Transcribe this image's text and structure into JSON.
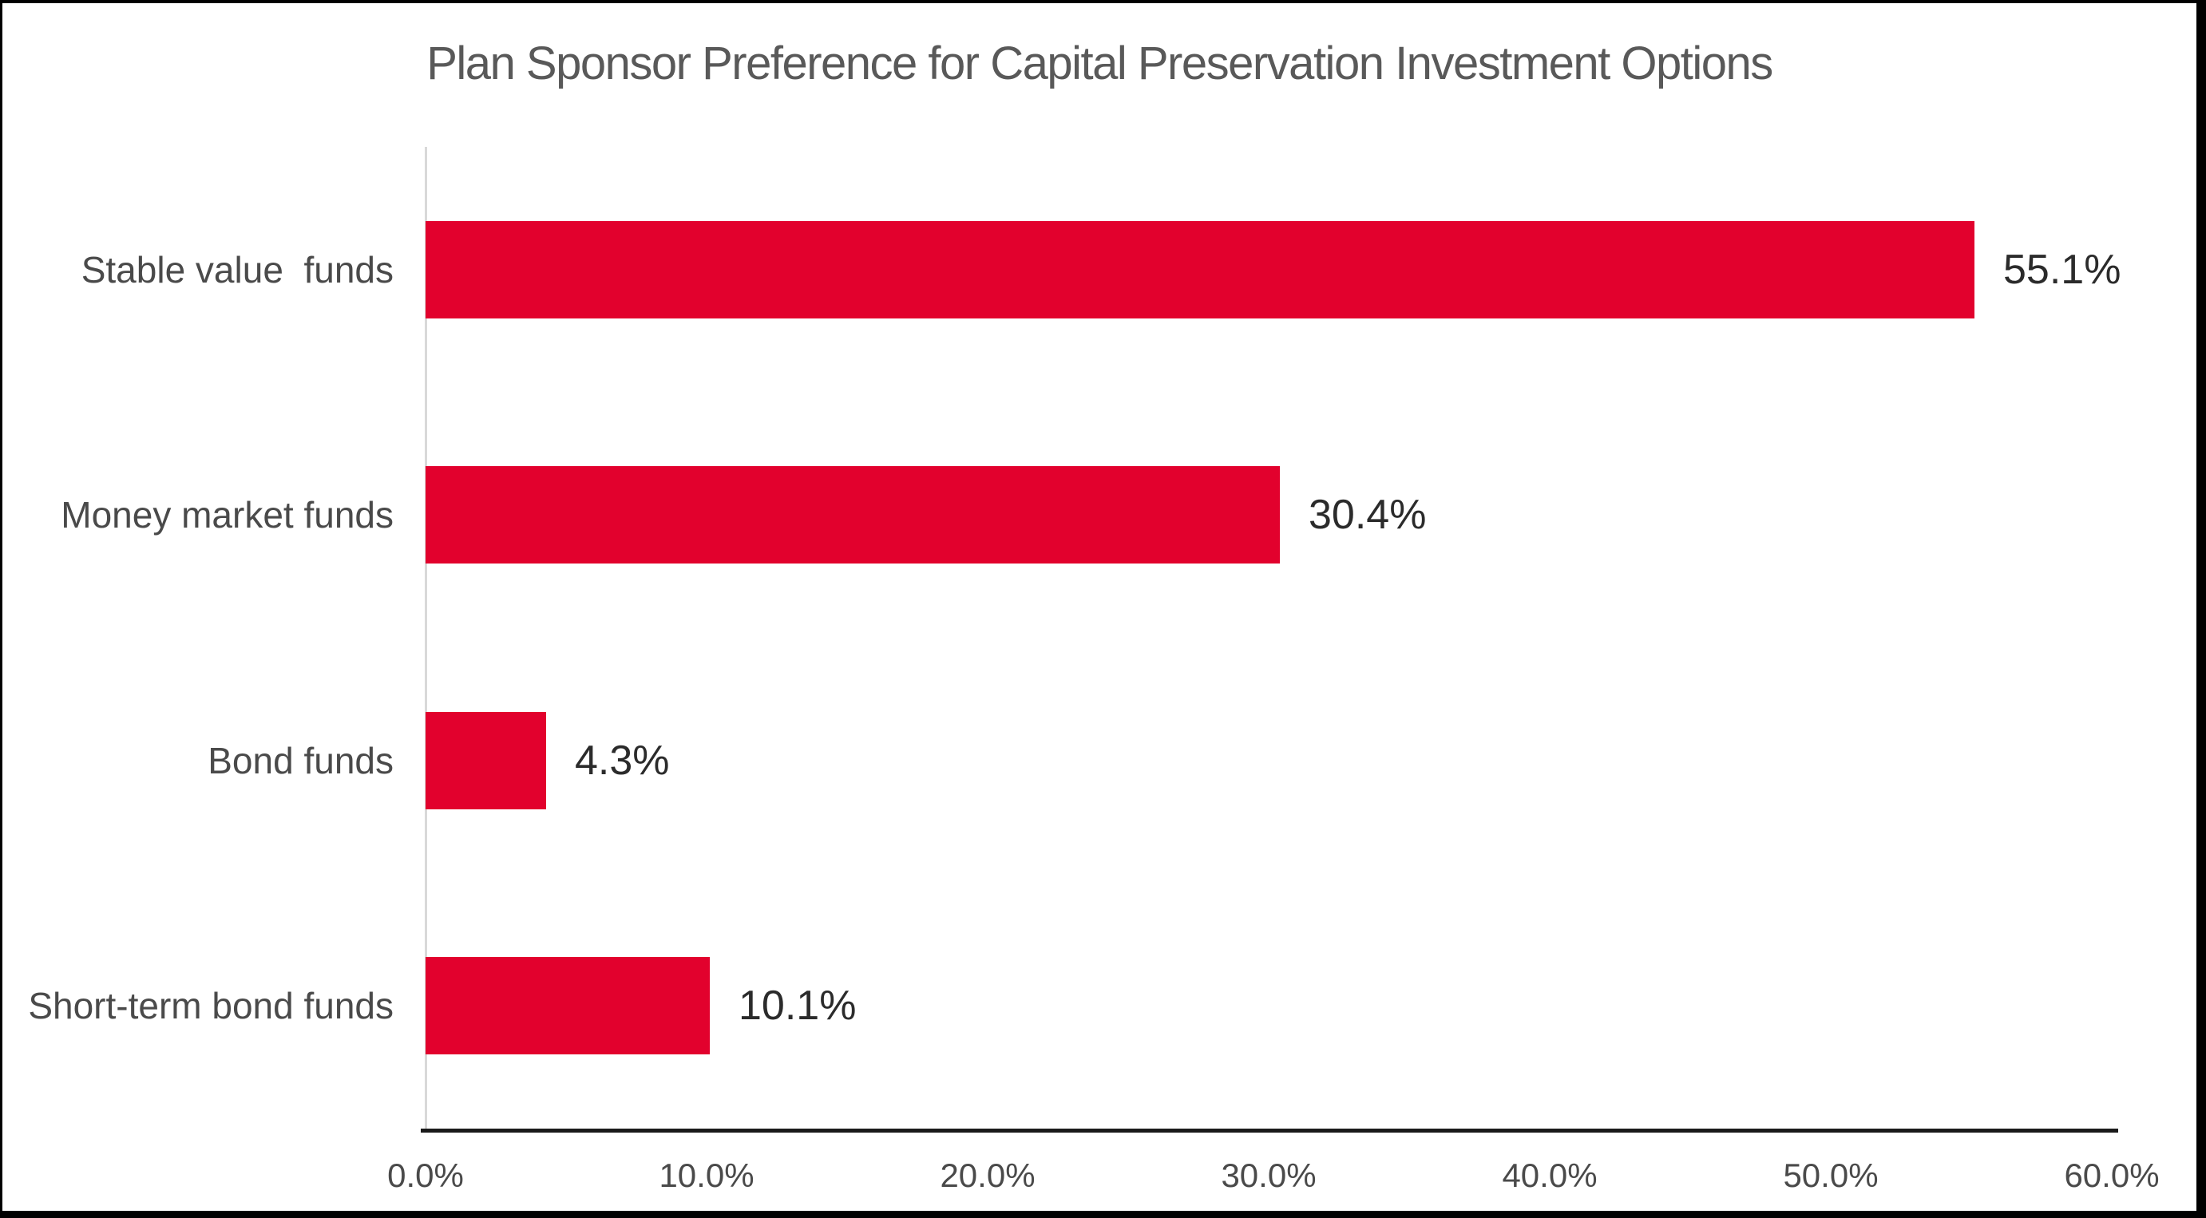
{
  "frame": {
    "background_color": "#ffffff",
    "border_color": "#000000"
  },
  "chart_data": {
    "type": "bar",
    "orientation": "horizontal",
    "title": "Plan Sponsor Preference for Capital Preservation Investment Options",
    "categories": [
      "Stable value  funds",
      "Money market funds",
      "Bond funds",
      "Short-term bond funds"
    ],
    "values": [
      55.1,
      30.4,
      4.3,
      10.1
    ],
    "value_labels": [
      "55.1%",
      "30.4%",
      "4.3%",
      "10.1%"
    ],
    "xlabel": "",
    "ylabel": "",
    "xlim": [
      0,
      60
    ],
    "x_tick_values": [
      0,
      10,
      20,
      30,
      40,
      50,
      60
    ],
    "x_tick_labels": [
      "0.0%",
      "10.0%",
      "20.0%",
      "30.0%",
      "40.0%",
      "50.0%",
      "60.0%"
    ],
    "grid": false,
    "legend": false,
    "bar_color": "#e2012d",
    "title_color": "#595959",
    "category_label_color": "#4a4a4a",
    "value_label_color": "#2b2b2b",
    "tick_label_color": "#4a4a4a",
    "baseline_color": "#1a1a1a",
    "zero_axis_line_color": "#d9d9d9"
  }
}
